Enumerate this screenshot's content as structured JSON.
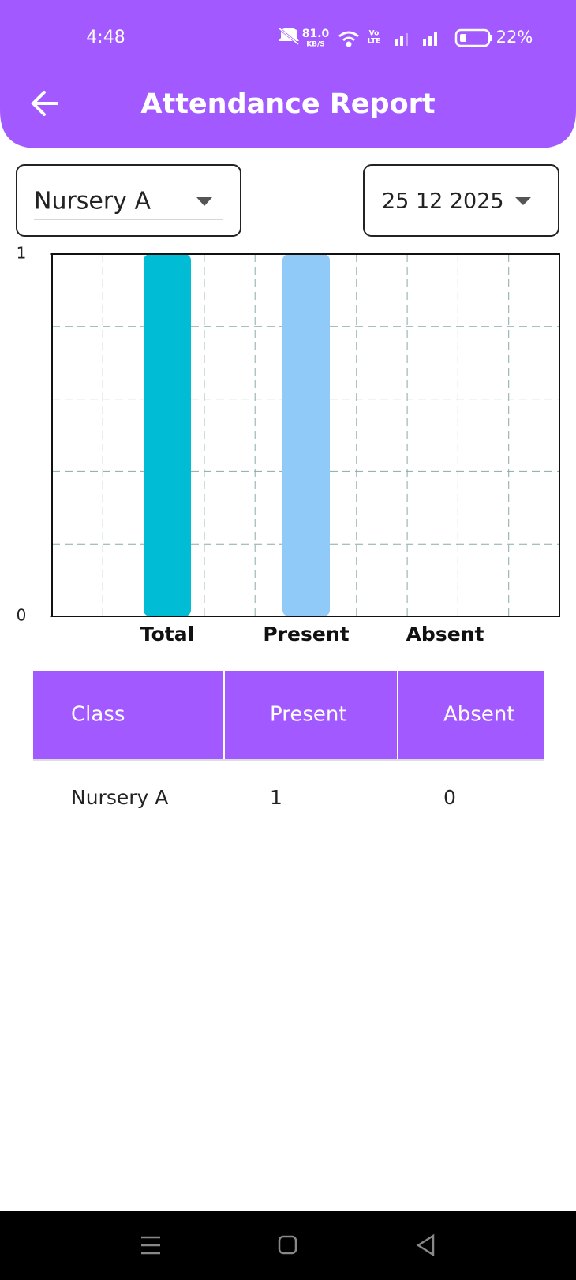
{
  "status_bar": {
    "time": "4:48",
    "speed": "81.0",
    "speed_unit": "KB/S",
    "network_top": "Vo",
    "network_bottom": "LTE",
    "battery": "22%"
  },
  "app_bar": {
    "title": "Attendance Report"
  },
  "filters": {
    "class": "Nursery A",
    "date": "25 12 2025"
  },
  "chart_data": {
    "type": "bar",
    "categories": [
      "Total",
      "Present",
      "Absent"
    ],
    "values": [
      1,
      1,
      0
    ],
    "colors": [
      "#00bcd4",
      "#90caf9",
      "#ef9a9a"
    ],
    "ylim": [
      0,
      1
    ],
    "yticks": [
      0,
      1
    ],
    "grid": true
  },
  "table": {
    "header": [
      "Class",
      "Present",
      "Absent"
    ],
    "rows": [
      [
        "Nursery A",
        1,
        0
      ]
    ]
  }
}
